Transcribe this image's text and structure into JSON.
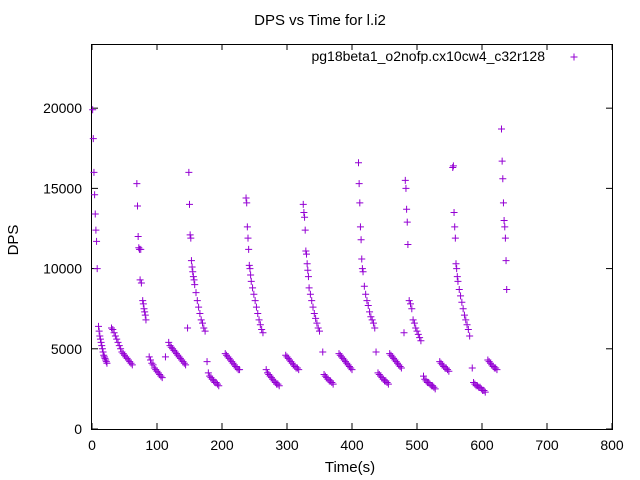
{
  "chart_data": {
    "type": "scatter",
    "title": "DPS vs Time for l.i2",
    "xlabel": "Time(s)",
    "ylabel": "DPS",
    "xlim": [
      0,
      800
    ],
    "ylim": [
      0,
      24000
    ],
    "xticks": [
      0,
      100,
      200,
      300,
      400,
      500,
      600,
      700,
      800
    ],
    "yticks": [
      0,
      5000,
      10000,
      15000,
      20000
    ],
    "xtick_labels": [
      "0",
      "100",
      "200",
      "300",
      "400",
      "500",
      "600",
      "700",
      "800"
    ],
    "ytick_labels": [
      "0",
      "5000",
      "10000",
      "15000",
      "20000"
    ],
    "grid": false,
    "legend_position": "top-right",
    "series": [
      {
        "name": "pg18beta1_o2nofp.cx10cw4_c32r128",
        "color": "#9400d3",
        "marker": "plus",
        "points": [
          [
            1,
            19900
          ],
          [
            2,
            18100
          ],
          [
            3,
            16000
          ],
          [
            4,
            14600
          ],
          [
            5,
            13400
          ],
          [
            6,
            12400
          ],
          [
            7,
            11700
          ],
          [
            8,
            10000
          ],
          [
            10,
            6400
          ],
          [
            11,
            6100
          ],
          [
            12,
            5800
          ],
          [
            13,
            5600
          ],
          [
            14,
            5400
          ],
          [
            15,
            5200
          ],
          [
            16,
            5000
          ],
          [
            17,
            4800
          ],
          [
            18,
            4600
          ],
          [
            19,
            4500
          ],
          [
            20,
            4400
          ],
          [
            21,
            4300
          ],
          [
            22,
            4200
          ],
          [
            23,
            4100
          ],
          [
            30,
            6300
          ],
          [
            32,
            6200
          ],
          [
            34,
            6000
          ],
          [
            36,
            5800
          ],
          [
            38,
            5600
          ],
          [
            40,
            5400
          ],
          [
            42,
            5200
          ],
          [
            44,
            5000
          ],
          [
            46,
            4800
          ],
          [
            48,
            4700
          ],
          [
            50,
            4600
          ],
          [
            52,
            4500
          ],
          [
            54,
            4400
          ],
          [
            56,
            4300
          ],
          [
            58,
            4200
          ],
          [
            60,
            4100
          ],
          [
            62,
            4000
          ],
          [
            69,
            15300
          ],
          [
            70,
            13900
          ],
          [
            71,
            12000
          ],
          [
            72,
            11300
          ],
          [
            73,
            11200
          ],
          [
            74,
            9300
          ],
          [
            75,
            11200
          ],
          [
            76,
            9100
          ],
          [
            78,
            8000
          ],
          [
            79,
            7800
          ],
          [
            80,
            7500
          ],
          [
            81,
            7300
          ],
          [
            82,
            7100
          ],
          [
            83,
            6800
          ],
          [
            88,
            4500
          ],
          [
            90,
            4300
          ],
          [
            92,
            4100
          ],
          [
            94,
            4000
          ],
          [
            96,
            3800
          ],
          [
            98,
            3700
          ],
          [
            100,
            3600
          ],
          [
            102,
            3500
          ],
          [
            104,
            3400
          ],
          [
            106,
            3300
          ],
          [
            108,
            3200
          ],
          [
            113,
            4500
          ],
          [
            118,
            5400
          ],
          [
            120,
            5200
          ],
          [
            122,
            5100
          ],
          [
            124,
            5000
          ],
          [
            126,
            4900
          ],
          [
            128,
            4800
          ],
          [
            130,
            4700
          ],
          [
            132,
            4600
          ],
          [
            134,
            4500
          ],
          [
            136,
            4400
          ],
          [
            138,
            4300
          ],
          [
            140,
            4200
          ],
          [
            142,
            4100
          ],
          [
            144,
            4000
          ],
          [
            147,
            6300
          ],
          [
            149,
            16000
          ],
          [
            150,
            14000
          ],
          [
            151,
            12100
          ],
          [
            152,
            11900
          ],
          [
            153,
            10500
          ],
          [
            154,
            10100
          ],
          [
            155,
            9800
          ],
          [
            156,
            9500
          ],
          [
            157,
            9300
          ],
          [
            158,
            9000
          ],
          [
            160,
            8500
          ],
          [
            162,
            8000
          ],
          [
            164,
            7600
          ],
          [
            166,
            7200
          ],
          [
            168,
            6800
          ],
          [
            170,
            6600
          ],
          [
            172,
            6300
          ],
          [
            174,
            6100
          ],
          [
            177,
            4200
          ],
          [
            179,
            3500
          ],
          [
            181,
            3300
          ],
          [
            183,
            3200
          ],
          [
            185,
            3100
          ],
          [
            187,
            3000
          ],
          [
            189,
            2900
          ],
          [
            191,
            2900
          ],
          [
            193,
            2800
          ],
          [
            195,
            2700
          ],
          [
            205,
            4700
          ],
          [
            207,
            4600
          ],
          [
            209,
            4500
          ],
          [
            211,
            4400
          ],
          [
            213,
            4300
          ],
          [
            215,
            4200
          ],
          [
            217,
            4100
          ],
          [
            219,
            4000
          ],
          [
            221,
            3900
          ],
          [
            223,
            3800
          ],
          [
            225,
            3700
          ],
          [
            227,
            3700
          ],
          [
            237,
            14400
          ],
          [
            238,
            14100
          ],
          [
            239,
            12600
          ],
          [
            240,
            11900
          ],
          [
            241,
            11200
          ],
          [
            242,
            10200
          ],
          [
            243,
            10000
          ],
          [
            244,
            9600
          ],
          [
            245,
            9200
          ],
          [
            247,
            8800
          ],
          [
            249,
            8400
          ],
          [
            251,
            8000
          ],
          [
            253,
            7600
          ],
          [
            255,
            7200
          ],
          [
            257,
            6800
          ],
          [
            259,
            6500
          ],
          [
            261,
            6200
          ],
          [
            263,
            6000
          ],
          [
            268,
            3700
          ],
          [
            270,
            3500
          ],
          [
            272,
            3400
          ],
          [
            274,
            3300
          ],
          [
            276,
            3200
          ],
          [
            278,
            3100
          ],
          [
            280,
            3000
          ],
          [
            282,
            2900
          ],
          [
            284,
            2800
          ],
          [
            286,
            2800
          ],
          [
            288,
            2700
          ],
          [
            298,
            4600
          ],
          [
            300,
            4500
          ],
          [
            302,
            4400
          ],
          [
            304,
            4300
          ],
          [
            306,
            4200
          ],
          [
            308,
            4100
          ],
          [
            310,
            4000
          ],
          [
            312,
            3900
          ],
          [
            314,
            3800
          ],
          [
            316,
            3800
          ],
          [
            318,
            3700
          ],
          [
            325,
            14000
          ],
          [
            326,
            13500
          ],
          [
            327,
            13200
          ],
          [
            328,
            12400
          ],
          [
            329,
            11100
          ],
          [
            330,
            10900
          ],
          [
            331,
            10300
          ],
          [
            332,
            9900
          ],
          [
            333,
            9500
          ],
          [
            334,
            8800
          ],
          [
            336,
            8400
          ],
          [
            338,
            8000
          ],
          [
            340,
            7600
          ],
          [
            342,
            7200
          ],
          [
            344,
            6900
          ],
          [
            346,
            6600
          ],
          [
            348,
            6300
          ],
          [
            350,
            6100
          ],
          [
            355,
            4800
          ],
          [
            357,
            3400
          ],
          [
            359,
            3300
          ],
          [
            361,
            3200
          ],
          [
            363,
            3100
          ],
          [
            365,
            3000
          ],
          [
            367,
            3000
          ],
          [
            369,
            2900
          ],
          [
            371,
            2800
          ],
          [
            380,
            4700
          ],
          [
            382,
            4600
          ],
          [
            384,
            4500
          ],
          [
            386,
            4400
          ],
          [
            388,
            4300
          ],
          [
            390,
            4200
          ],
          [
            392,
            4100
          ],
          [
            394,
            4000
          ],
          [
            396,
            3900
          ],
          [
            398,
            3800
          ],
          [
            400,
            3700
          ],
          [
            410,
            16600
          ],
          [
            411,
            15300
          ],
          [
            412,
            14100
          ],
          [
            413,
            12600
          ],
          [
            414,
            11800
          ],
          [
            415,
            10600
          ],
          [
            416,
            10000
          ],
          [
            417,
            9800
          ],
          [
            419,
            8900
          ],
          [
            421,
            8400
          ],
          [
            423,
            8000
          ],
          [
            425,
            7700
          ],
          [
            427,
            7300
          ],
          [
            429,
            7000
          ],
          [
            431,
            6800
          ],
          [
            433,
            6600
          ],
          [
            435,
            6300
          ],
          [
            437,
            4800
          ],
          [
            440,
            3500
          ],
          [
            442,
            3400
          ],
          [
            444,
            3300
          ],
          [
            446,
            3200
          ],
          [
            448,
            3100
          ],
          [
            450,
            3000
          ],
          [
            452,
            3000
          ],
          [
            454,
            2900
          ],
          [
            456,
            2800
          ],
          [
            458,
            4700
          ],
          [
            460,
            4600
          ],
          [
            462,
            4500
          ],
          [
            464,
            4400
          ],
          [
            466,
            4300
          ],
          [
            468,
            4200
          ],
          [
            470,
            4100
          ],
          [
            472,
            4000
          ],
          [
            474,
            3900
          ],
          [
            476,
            3800
          ],
          [
            480,
            6000
          ],
          [
            482,
            15500
          ],
          [
            483,
            15000
          ],
          [
            484,
            13700
          ],
          [
            485,
            12900
          ],
          [
            486,
            11500
          ],
          [
            488,
            8000
          ],
          [
            490,
            7800
          ],
          [
            492,
            7500
          ],
          [
            494,
            6800
          ],
          [
            496,
            6600
          ],
          [
            498,
            6300
          ],
          [
            500,
            6100
          ],
          [
            502,
            5900
          ],
          [
            504,
            5700
          ],
          [
            506,
            5500
          ],
          [
            510,
            3300
          ],
          [
            512,
            3100
          ],
          [
            514,
            3000
          ],
          [
            516,
            2900
          ],
          [
            518,
            2900
          ],
          [
            520,
            2800
          ],
          [
            522,
            2700
          ],
          [
            524,
            2700
          ],
          [
            526,
            2600
          ],
          [
            528,
            2500
          ],
          [
            535,
            4200
          ],
          [
            537,
            4100
          ],
          [
            539,
            4000
          ],
          [
            541,
            3900
          ],
          [
            543,
            3800
          ],
          [
            545,
            3800
          ],
          [
            547,
            3700
          ],
          [
            549,
            3600
          ],
          [
            555,
            16300
          ],
          [
            556,
            16400
          ],
          [
            557,
            13500
          ],
          [
            558,
            12600
          ],
          [
            559,
            11900
          ],
          [
            560,
            10300
          ],
          [
            561,
            10000
          ],
          [
            562,
            9500
          ],
          [
            563,
            9200
          ],
          [
            565,
            8700
          ],
          [
            567,
            8300
          ],
          [
            569,
            7900
          ],
          [
            571,
            7500
          ],
          [
            573,
            7100
          ],
          [
            575,
            6800
          ],
          [
            577,
            6500
          ],
          [
            579,
            6200
          ],
          [
            581,
            5800
          ],
          [
            585,
            3800
          ],
          [
            587,
            2900
          ],
          [
            589,
            2800
          ],
          [
            591,
            2700
          ],
          [
            593,
            2700
          ],
          [
            595,
            2600
          ],
          [
            597,
            2600
          ],
          [
            599,
            2500
          ],
          [
            601,
            2400
          ],
          [
            603,
            2400
          ],
          [
            605,
            2300
          ],
          [
            609,
            4300
          ],
          [
            611,
            4200
          ],
          [
            613,
            4100
          ],
          [
            615,
            4000
          ],
          [
            617,
            3900
          ],
          [
            619,
            3800
          ],
          [
            621,
            3800
          ],
          [
            623,
            3700
          ],
          [
            630,
            18700
          ],
          [
            631,
            16700
          ],
          [
            632,
            15600
          ],
          [
            633,
            14100
          ],
          [
            634,
            13000
          ],
          [
            635,
            12600
          ],
          [
            636,
            11900
          ],
          [
            637,
            10500
          ],
          [
            638,
            8700
          ]
        ]
      }
    ]
  }
}
